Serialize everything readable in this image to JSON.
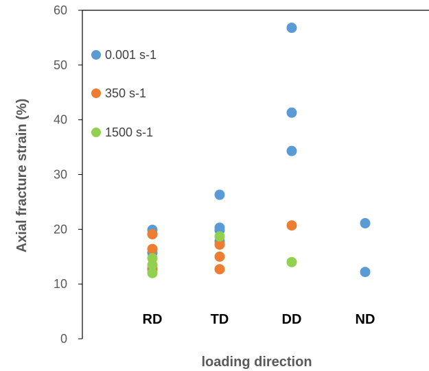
{
  "chart_data": {
    "type": "scatter",
    "title": "",
    "xlabel": "loading direction",
    "ylabel": "Axial fracture strain (%)",
    "ylim": [
      0,
      60
    ],
    "yticks": [
      0,
      10,
      20,
      30,
      40,
      50,
      60
    ],
    "categories": [
      "RD",
      "TD",
      "DD",
      "ND"
    ],
    "grid": false,
    "legend_position": "top-left",
    "series": [
      {
        "name": "0.001 s-1",
        "color": "#5B9BD5",
        "points": [
          {
            "category": "RD",
            "y": 19.9
          },
          {
            "category": "RD",
            "y": 15.7
          },
          {
            "category": "RD",
            "y": 12.9
          },
          {
            "category": "TD",
            "y": 26.3
          },
          {
            "category": "TD",
            "y": 20.3
          },
          {
            "category": "TD",
            "y": 19.8
          },
          {
            "category": "TD",
            "y": 17.8
          },
          {
            "category": "DD",
            "y": 56.8
          },
          {
            "category": "DD",
            "y": 41.3
          },
          {
            "category": "DD",
            "y": 34.3
          },
          {
            "category": "ND",
            "y": 21.1
          },
          {
            "category": "ND",
            "y": 12.2
          }
        ]
      },
      {
        "name": "350 s-1",
        "color": "#ED7D31",
        "points": [
          {
            "category": "RD",
            "y": 19.1
          },
          {
            "category": "RD",
            "y": 16.4
          },
          {
            "category": "RD",
            "y": 12.6
          },
          {
            "category": "TD",
            "y": 17.2
          },
          {
            "category": "TD",
            "y": 15.0
          },
          {
            "category": "TD",
            "y": 12.7
          },
          {
            "category": "DD",
            "y": 20.7
          }
        ]
      },
      {
        "name": "1500 s-1",
        "color": "#92D050",
        "points": [
          {
            "category": "RD",
            "y": 14.7
          },
          {
            "category": "RD",
            "y": 13.5
          },
          {
            "category": "RD",
            "y": 12.0
          },
          {
            "category": "TD",
            "y": 18.7
          },
          {
            "category": "DD",
            "y": 14.0
          }
        ]
      }
    ]
  }
}
